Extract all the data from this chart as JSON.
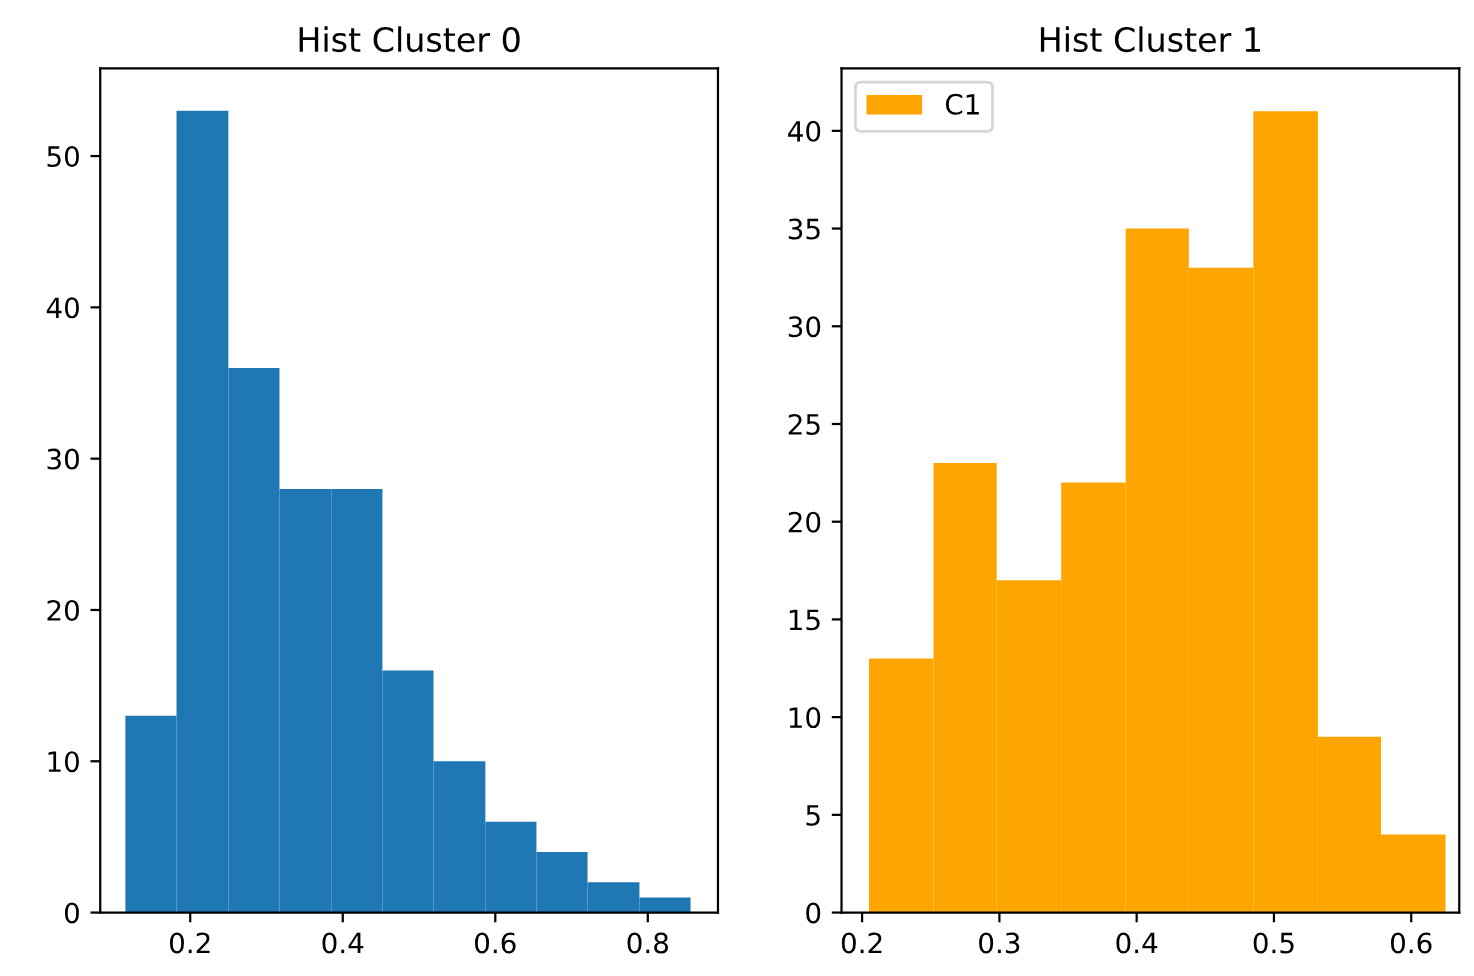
{
  "chart_data": [
    {
      "type": "histogram",
      "title": "Hist Cluster 0",
      "color": "#1f77b4",
      "bins": [
        0.115,
        0.182,
        0.25,
        0.317,
        0.385,
        0.452,
        0.519,
        0.587,
        0.654,
        0.721,
        0.789,
        0.856
      ],
      "values": [
        13,
        53,
        36,
        28,
        28,
        16,
        10,
        6,
        4,
        2,
        1
      ],
      "xlim": [
        0.082,
        0.892
      ],
      "xticks": [
        0.2,
        0.4,
        0.6,
        0.8
      ],
      "ylim": [
        0,
        55.8
      ],
      "yticks": [
        0,
        10,
        20,
        30,
        40,
        50
      ],
      "grid": false,
      "legend": false
    },
    {
      "type": "histogram",
      "title": "Hist Cluster 1",
      "bins": [
        0.205,
        0.252,
        0.298,
        0.345,
        0.392,
        0.438,
        0.485,
        0.532,
        0.578,
        0.625
      ],
      "series": [
        {
          "name": "C1",
          "color": "#ffa500",
          "values": [
            13,
            23,
            17,
            22,
            35,
            33,
            41,
            9,
            4
          ]
        }
      ],
      "xlim": [
        0.185,
        0.635
      ],
      "xticks": [
        0.2,
        0.3,
        0.4,
        0.5,
        0.6
      ],
      "ylim": [
        0,
        43.2
      ],
      "yticks": [
        0,
        5,
        10,
        15,
        20,
        25,
        30,
        35,
        40
      ],
      "grid": false,
      "legend": "top left"
    }
  ]
}
